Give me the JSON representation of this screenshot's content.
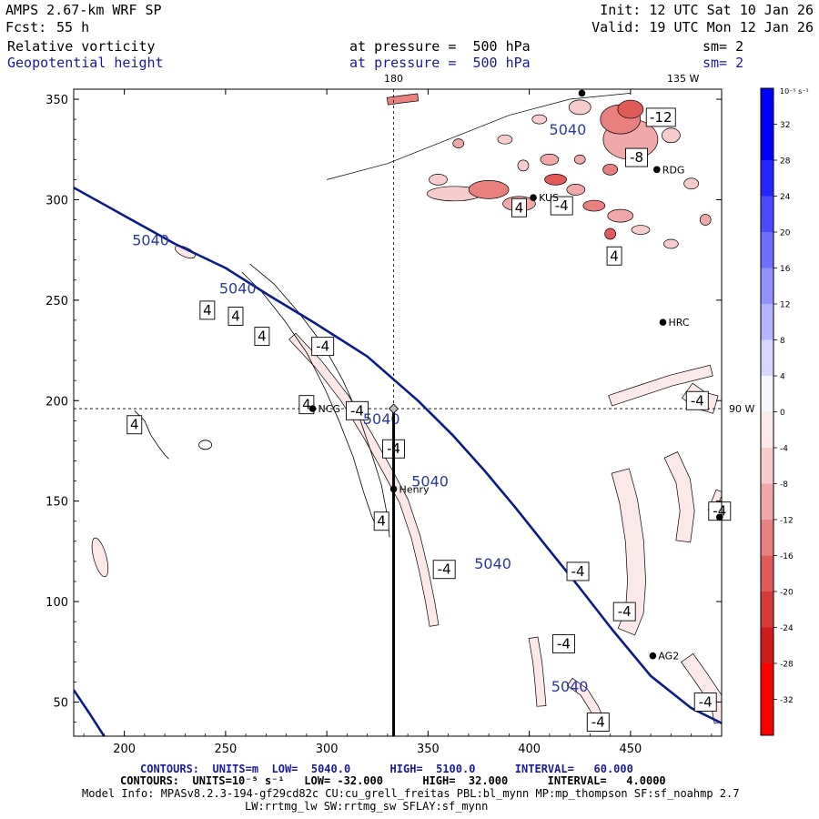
{
  "header": {
    "model": "AMPS 2.67-km WRF SP",
    "init": "Init: 12 UTC Sat 10 Jan 26",
    "fcst_label": "Fcst:",
    "fcst_value": "55 h",
    "valid": "Valid: 19 UTC Mon 12 Jan 26",
    "field1": "Relative vorticity",
    "field1_level": "at pressure =  500 hPa",
    "field1_sm": "sm= 2",
    "field2": "Geopotential height",
    "field2_level": "at pressure =  500 hPa",
    "field2_sm": "sm= 2"
  },
  "footer": {
    "line1": "CONTOURS:  UNITS=m  LOW=  5040.0      HIGH=  5100.0      INTERVAL=   60.000",
    "line2": "CONTOURS:  UNITS=10⁻⁵ s⁻¹   LOW= -32.000      HIGH=  32.000      INTERVAL=   4.0000",
    "line3": "Model Info: MPASv8.2.3-194-gf29cd82c CU:cu_grell_freitas PBL:bl_mynn MP:mp_thompson SF:sf_noahmp 2.7",
    "line4": "LW:rrtmg_lw SW:rrtmg_sw SFLAY:sf_mynn"
  },
  "colors": {
    "height_contour": "#0a1a8a",
    "height_label": "#2a3a9a",
    "negative_fill": [
      "#fbe8e8",
      "#f6cccc",
      "#f0a8a8",
      "#e88080",
      "#e05a5a",
      "#d83a3a",
      "#d01c1c",
      "#ff0000"
    ],
    "positive_fill": [
      "#f6f6ff",
      "#d6d6ff",
      "#b4b4ff",
      "#9292ff",
      "#6e6eff",
      "#4a4aff",
      "#2626ff",
      "#0000ff"
    ]
  },
  "chart_data": {
    "type": "contour-map",
    "xlim": [
      175,
      495
    ],
    "ylim": [
      33,
      355
    ],
    "xticks": [
      200,
      250,
      300,
      350,
      400,
      450
    ],
    "yticks": [
      50,
      100,
      150,
      200,
      250,
      300,
      350
    ],
    "meridian_labels": [
      {
        "text": "180",
        "x": 333
      },
      {
        "text": "135 W",
        "x": 476
      }
    ],
    "parallel_label": {
      "text": "90 W",
      "y": 196
    },
    "crosshair": {
      "x": 333,
      "y": 196
    },
    "section_line": {
      "x": 333,
      "y_from": 196,
      "y_to": 33
    },
    "colorbar": {
      "unit": "10⁻⁵ s⁻¹",
      "min": -36,
      "max": 36,
      "labels": [
        32,
        28,
        24,
        20,
        16,
        12,
        8,
        4,
        0,
        -4,
        -8,
        -12,
        -16,
        -20,
        -24,
        -28,
        -32
      ]
    },
    "height_contours": [
      {
        "value": 5040,
        "points": [
          [
            175,
            306
          ],
          [
            200,
            292
          ],
          [
            225,
            278
          ],
          [
            250,
            266
          ],
          [
            272,
            252
          ],
          [
            295,
            238
          ],
          [
            320,
            222
          ],
          [
            345,
            200
          ],
          [
            362,
            183
          ],
          [
            378,
            165
          ],
          [
            393,
            147
          ],
          [
            408,
            128
          ],
          [
            424,
            108
          ],
          [
            441,
            86
          ],
          [
            460,
            63
          ],
          [
            480,
            47
          ],
          [
            498,
            38
          ]
        ]
      },
      {
        "value": 5040,
        "points": [
          [
            175,
            56
          ],
          [
            183,
            44
          ],
          [
            190,
            33
          ]
        ]
      }
    ],
    "height_labels": [
      {
        "text": "5040",
        "x": 213,
        "y": 280
      },
      {
        "text": "5040",
        "x": 256,
        "y": 256
      },
      {
        "text": "5040",
        "x": 327,
        "y": 191
      },
      {
        "text": "5040",
        "x": 351,
        "y": 160
      },
      {
        "text": "5040",
        "x": 382,
        "y": 119
      },
      {
        "text": "5040",
        "x": 420,
        "y": 58
      },
      {
        "text": "5040",
        "x": 419,
        "y": 335
      }
    ],
    "vorticity_labels": [
      {
        "text": "4",
        "x": 241,
        "y": 245
      },
      {
        "text": "4",
        "x": 255,
        "y": 242
      },
      {
        "text": "4",
        "x": 268,
        "y": 232
      },
      {
        "text": "4",
        "x": 205,
        "y": 188
      },
      {
        "text": "4",
        "x": 290,
        "y": 198
      },
      {
        "text": "4",
        "x": 327,
        "y": 140
      },
      {
        "text": "-4",
        "x": 298,
        "y": 227
      },
      {
        "text": "-4",
        "x": 315,
        "y": 195
      },
      {
        "text": "-4",
        "x": 333,
        "y": 176
      },
      {
        "text": "-4",
        "x": 358,
        "y": 116
      },
      {
        "text": "4",
        "x": 395,
        "y": 296
      },
      {
        "text": "4",
        "x": 442,
        "y": 272
      },
      {
        "text": "-4",
        "x": 416,
        "y": 297
      },
      {
        "text": "-8",
        "x": 453,
        "y": 321
      },
      {
        "text": "-12",
        "x": 465,
        "y": 341
      },
      {
        "text": "-4",
        "x": 483,
        "y": 200
      },
      {
        "text": "-4",
        "x": 494,
        "y": 145
      },
      {
        "text": "-4",
        "x": 424,
        "y": 115
      },
      {
        "text": "-4",
        "x": 447,
        "y": 95
      },
      {
        "text": "-4",
        "x": 417,
        "y": 79
      },
      {
        "text": "-4",
        "x": 487,
        "y": 50
      },
      {
        "text": "-4",
        "x": 434,
        "y": 40
      }
    ],
    "stations": [
      {
        "name": "NCG",
        "x": 293,
        "y": 196
      },
      {
        "name": "Henry",
        "x": 333,
        "y": 156
      },
      {
        "name": "HRC",
        "x": 466,
        "y": 239
      },
      {
        "name": "AG2",
        "x": 461,
        "y": 73
      },
      {
        "name": "KUS",
        "x": 402,
        "y": 301
      },
      {
        "name": "RDG",
        "x": 463,
        "y": 315
      },
      {
        "name": "",
        "x": 426,
        "y": 353
      },
      {
        "name": "",
        "x": 494,
        "y": 142
      }
    ]
  }
}
